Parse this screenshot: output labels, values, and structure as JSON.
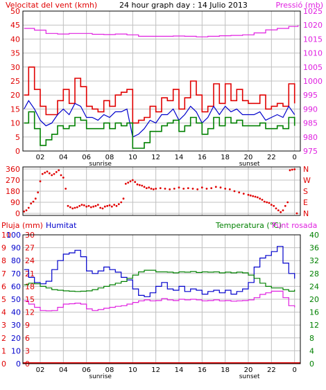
{
  "colors": {
    "wind": "#e00000",
    "wind_avg": "#0000cc",
    "wind_low": "#008000",
    "pressure": "#e020e0",
    "direction": "#e00000",
    "humidity": "#0000cc",
    "temperature": "#008000",
    "dewpoint": "#e020e0",
    "rain": "#e00000",
    "text_main": "#000000",
    "grid": "#c0c0c0",
    "background": "#ffffff",
    "frame": "#000000"
  },
  "chart_data": [
    {
      "type": "line",
      "title": "24 hour graph day : 14 Julio 2013",
      "left_label": "Velocitat del vent (kmh)",
      "right_label": "Pressió (mb)",
      "x_ticks": [
        "02",
        "04",
        "06",
        "08",
        "10",
        "12",
        "14",
        "16",
        "18",
        "20",
        "22",
        "0"
      ],
      "x_annotations": [
        "sunrise",
        "sunset"
      ],
      "sunrise_hour": 7.2,
      "sunset_hour": 20.1,
      "xlim": [
        0.5,
        24.5
      ],
      "y_left_ticks": [
        "0",
        "5",
        "10",
        "15",
        "20",
        "25",
        "30",
        "35",
        "40",
        "45",
        "50"
      ],
      "ylim_left": [
        0,
        50
      ],
      "y_right_ticks": [
        "975",
        "980",
        "985",
        "990",
        "995",
        "1000",
        "1005",
        "1010",
        "1015",
        "1020",
        "1025"
      ],
      "ylim_right": [
        975,
        1025
      ],
      "series": [
        {
          "key": "gust",
          "axis": "left",
          "x": [
            0.6,
            1.0,
            1.5,
            2.0,
            2.5,
            3.0,
            3.5,
            4.0,
            4.5,
            5.0,
            5.5,
            6.0,
            6.5,
            7.0,
            7.5,
            8.0,
            8.5,
            9.0,
            9.5,
            10.0,
            10.5,
            11.0,
            11.5,
            12.0,
            12.5,
            13.0,
            13.5,
            14.0,
            14.5,
            15.0,
            15.5,
            16.0,
            16.5,
            17.0,
            17.5,
            18.0,
            18.5,
            19.0,
            19.5,
            20.0,
            20.5,
            21.0,
            21.5,
            22.0,
            22.5,
            23.0,
            23.5,
            24.0
          ],
          "values": [
            20,
            30,
            22,
            16,
            13,
            13,
            18,
            22,
            17,
            26,
            23,
            16,
            15,
            14,
            18,
            16,
            20,
            21,
            22,
            10,
            11,
            12,
            16,
            14,
            19,
            18,
            22,
            15,
            19,
            25,
            20,
            14,
            16,
            24,
            17,
            24,
            18,
            22,
            18,
            17,
            17,
            20,
            15,
            16,
            17,
            16,
            24,
            17
          ]
        },
        {
          "key": "average",
          "axis": "left",
          "x": [
            0.6,
            1.0,
            1.5,
            2.0,
            2.5,
            3.0,
            3.5,
            4.0,
            4.5,
            5.0,
            5.5,
            6.0,
            6.5,
            7.0,
            7.5,
            8.0,
            8.5,
            9.0,
            9.5,
            10.0,
            10.5,
            11.0,
            11.5,
            12.0,
            12.5,
            13.0,
            13.5,
            14.0,
            14.5,
            15.0,
            15.5,
            16.0,
            16.5,
            17.0,
            17.5,
            18.0,
            18.5,
            19.0,
            19.5,
            20.0,
            20.5,
            21.0,
            21.5,
            22.0,
            22.5,
            23.0,
            23.5,
            24.0
          ],
          "values": [
            15,
            18,
            15,
            11,
            9,
            10,
            13,
            15,
            13,
            17,
            16,
            12,
            12,
            11,
            13,
            12,
            14,
            14,
            15,
            5,
            6,
            8,
            11,
            10,
            13,
            13,
            15,
            11,
            13,
            16,
            14,
            10,
            12,
            16,
            13,
            16,
            14,
            15,
            13,
            13,
            13,
            14,
            11,
            12,
            13,
            12,
            16,
            13
          ]
        },
        {
          "key": "low",
          "axis": "left",
          "x": [
            0.6,
            1.0,
            1.5,
            2.0,
            2.5,
            3.0,
            3.5,
            4.0,
            4.5,
            5.0,
            5.5,
            6.0,
            6.5,
            7.0,
            7.5,
            8.0,
            8.5,
            9.0,
            9.5,
            10.0,
            10.5,
            11.0,
            11.5,
            12.0,
            12.5,
            13.0,
            13.5,
            14.0,
            14.5,
            15.0,
            15.5,
            16.0,
            16.5,
            17.0,
            17.5,
            18.0,
            18.5,
            19.0,
            19.5,
            20.0,
            20.5,
            21.0,
            21.5,
            22.0,
            22.5,
            23.0,
            23.5,
            24.0
          ],
          "values": [
            10,
            14,
            8,
            2,
            4,
            6,
            9,
            8,
            9,
            12,
            11,
            8,
            8,
            8,
            10,
            8,
            10,
            9,
            10,
            1,
            1,
            3,
            7,
            7,
            9,
            10,
            11,
            7,
            9,
            12,
            10,
            6,
            8,
            12,
            9,
            12,
            10,
            11,
            9,
            9,
            9,
            10,
            8,
            8,
            9,
            8,
            12,
            9
          ]
        },
        {
          "key": "pressure",
          "axis": "right",
          "x": [
            0.6,
            1.5,
            2.5,
            3.5,
            4.5,
            5.5,
            6.5,
            7.5,
            8.5,
            9.5,
            10.5,
            11.5,
            12.5,
            13.5,
            14.5,
            15.5,
            16.5,
            17.5,
            18.5,
            19.5,
            20.5,
            21.5,
            22.5,
            23.5,
            24.3
          ],
          "values": [
            1018.8,
            1018.2,
            1017,
            1016.8,
            1017,
            1017,
            1016.7,
            1016.6,
            1016.8,
            1016.5,
            1016,
            1016,
            1016,
            1016.1,
            1016,
            1015.8,
            1016,
            1016.2,
            1016.3,
            1016.5,
            1017.2,
            1018.3,
            1018.8,
            1019.5,
            1020
          ]
        }
      ]
    },
    {
      "type": "scatter",
      "left_ticks": [
        "360",
        "270",
        "180",
        "90",
        "0"
      ],
      "ylim": [
        0,
        360
      ],
      "right_ticks": [
        "N",
        "W",
        "S",
        "E",
        "N"
      ],
      "xlim": [
        0.5,
        24.5
      ],
      "series": [
        {
          "key": "direction",
          "x": [
            0.6,
            0.8,
            1.0,
            1.2,
            1.4,
            1.6,
            1.8,
            2.0,
            2.2,
            2.4,
            2.6,
            2.8,
            3.0,
            3.2,
            3.4,
            3.6,
            3.8,
            4.0,
            4.2,
            4.4,
            4.6,
            4.8,
            5.0,
            5.2,
            5.4,
            5.6,
            5.8,
            6.0,
            6.2,
            6.4,
            6.6,
            6.8,
            7.0,
            7.2,
            7.4,
            7.6,
            7.8,
            8.0,
            8.2,
            8.4,
            8.6,
            8.8,
            9.0,
            9.2,
            9.4,
            9.6,
            9.8,
            10.0,
            10.2,
            10.4,
            10.6,
            10.8,
            11.0,
            11.2,
            11.4,
            11.6,
            11.8,
            12.0,
            12.4,
            12.8,
            13.2,
            13.6,
            14.0,
            14.4,
            14.8,
            15.2,
            15.6,
            16.0,
            16.4,
            16.8,
            17.2,
            17.6,
            18.0,
            18.4,
            18.8,
            19.2,
            19.6,
            20.0,
            20.2,
            20.4,
            20.6,
            20.8,
            21.0,
            21.2,
            21.4,
            21.6,
            21.8,
            22.0,
            22.2,
            22.4,
            22.6,
            22.8,
            23.0,
            23.2,
            23.4,
            23.6,
            23.8,
            24.0,
            24.2
          ],
          "values": [
            15,
            25,
            45,
            80,
            95,
            120,
            170,
            260,
            320,
            330,
            340,
            325,
            310,
            320,
            335,
            350,
            310,
            290,
            200,
            60,
            50,
            40,
            45,
            50,
            60,
            70,
            65,
            55,
            60,
            50,
            55,
            60,
            70,
            45,
            40,
            55,
            60,
            65,
            55,
            70,
            60,
            75,
            90,
            120,
            240,
            250,
            260,
            270,
            255,
            235,
            230,
            225,
            215,
            205,
            210,
            200,
            195,
            200,
            205,
            200,
            195,
            200,
            210,
            200,
            205,
            200,
            195,
            210,
            200,
            205,
            215,
            210,
            200,
            195,
            180,
            170,
            160,
            150,
            145,
            140,
            135,
            130,
            120,
            110,
            95,
            90,
            85,
            70,
            60,
            40,
            25,
            10,
            25,
            60,
            90,
            350,
            355,
            358,
            0
          ]
        }
      ]
    },
    {
      "type": "line",
      "rain_label": "Pluja (mm)",
      "humidity_label": "Humitat",
      "temperature_label": "Temperatura (°C)",
      "dewpoint_label": "Punt rosada",
      "x_ticks": [
        "02",
        "04",
        "06",
        "08",
        "10",
        "12",
        "14",
        "16",
        "18",
        "20",
        "22",
        "0"
      ],
      "x_annotations": [
        "sunrise",
        "sunset"
      ],
      "sunrise_hour": 7.2,
      "sunset_hour": 20.1,
      "xlim": [
        0.5,
        24.5
      ],
      "y_rain_ticks": [
        "0",
        "1",
        "2",
        "3",
        "4",
        "5",
        "6",
        "7",
        "8",
        "9",
        "10"
      ],
      "ylim_rain": [
        0,
        10
      ],
      "y_humidity_ticks": [
        "0",
        "10",
        "20",
        "30",
        "40",
        "50",
        "60",
        "70",
        "80",
        "90",
        "100"
      ],
      "ylim_humidity": [
        0,
        100
      ],
      "y_mid_ticks": [
        "0",
        "3",
        "6",
        "9",
        "12",
        "15",
        "18",
        "21",
        "24",
        "27",
        "30"
      ],
      "ylim_mid": [
        0,
        30
      ],
      "y_temp_ticks": [
        "0",
        "4",
        "8",
        "12",
        "16",
        "20",
        "24",
        "28",
        "32",
        "36",
        "40"
      ],
      "ylim_temp": [
        0,
        40
      ],
      "series": [
        {
          "key": "humidity",
          "axis": "humidity",
          "x": [
            0.6,
            1.0,
            1.5,
            2.0,
            2.5,
            3.0,
            3.5,
            4.0,
            4.5,
            5.0,
            5.5,
            6.0,
            6.5,
            7.0,
            7.5,
            8.0,
            8.5,
            9.0,
            9.5,
            10.0,
            10.5,
            11.0,
            11.5,
            12.0,
            12.5,
            13.0,
            13.5,
            14.0,
            14.5,
            15.0,
            15.5,
            16.0,
            16.5,
            17.0,
            17.5,
            18.0,
            18.5,
            19.0,
            19.5,
            20.0,
            20.5,
            21.0,
            21.5,
            22.0,
            22.5,
            23.0,
            23.5,
            24.0
          ],
          "values": [
            73,
            67,
            63,
            62,
            64,
            73,
            80,
            85,
            86,
            88,
            83,
            72,
            70,
            72,
            75,
            73,
            71,
            67,
            65,
            58,
            53,
            52,
            55,
            60,
            63,
            58,
            57,
            60,
            56,
            58,
            57,
            54,
            56,
            57,
            55,
            57,
            54,
            56,
            58,
            63,
            75,
            82,
            84,
            87,
            91,
            78,
            70,
            66
          ]
        },
        {
          "key": "temperature",
          "axis": "temp",
          "x": [
            0.6,
            1.0,
            1.5,
            2.0,
            2.5,
            3.0,
            3.5,
            4.0,
            4.5,
            5.0,
            5.5,
            6.0,
            6.5,
            7.0,
            7.5,
            8.0,
            8.5,
            9.0,
            9.5,
            10.0,
            10.5,
            11.0,
            11.5,
            12.0,
            12.5,
            13.0,
            13.5,
            14.0,
            14.5,
            15.0,
            15.5,
            16.0,
            16.5,
            17.0,
            17.5,
            18.0,
            18.5,
            19.0,
            19.5,
            20.0,
            20.5,
            21.0,
            21.5,
            22.0,
            22.5,
            23.0,
            23.5,
            24.0
          ],
          "values": [
            24.5,
            25,
            24.8,
            24,
            23.5,
            23,
            22.8,
            22.6,
            22.5,
            22.4,
            22.5,
            22.6,
            23,
            23.5,
            24,
            24.5,
            25,
            25.5,
            26.5,
            27.5,
            28.5,
            29,
            29,
            28.5,
            28.5,
            28.4,
            28.2,
            28.5,
            28.4,
            28.6,
            28.3,
            28.5,
            28.4,
            28.5,
            28.2,
            28.4,
            28.2,
            28.4,
            28.2,
            27.5,
            26.5,
            25,
            24,
            23.5,
            23.5,
            23,
            22.5,
            23
          ]
        },
        {
          "key": "dewpoint",
          "axis": "temp",
          "x": [
            0.6,
            1.0,
            1.5,
            2.0,
            2.5,
            3.0,
            3.5,
            4.0,
            4.5,
            5.0,
            5.5,
            6.0,
            6.5,
            7.0,
            7.5,
            8.0,
            8.5,
            9.0,
            9.5,
            10.0,
            10.5,
            11.0,
            11.5,
            12.0,
            12.5,
            13.0,
            13.5,
            14.0,
            14.5,
            15.0,
            15.5,
            16.0,
            16.5,
            17.0,
            17.5,
            18.0,
            18.5,
            19.0,
            19.5,
            20.0,
            20.5,
            21.0,
            21.5,
            22.0,
            22.5,
            23.0,
            23.5,
            24.0
          ],
          "values": [
            19.5,
            18.5,
            17.5,
            16.5,
            16.4,
            16.5,
            17.5,
            18.5,
            18.6,
            18.8,
            18.5,
            17,
            16.5,
            16.8,
            17.2,
            17.5,
            17.8,
            18,
            18.5,
            19,
            19.5,
            19.8,
            19.5,
            19.6,
            20.2,
            19.8,
            19.6,
            20,
            19.8,
            20,
            19.8,
            19.5,
            19.6,
            19.8,
            19.5,
            19.6,
            19.4,
            19.5,
            19.6,
            19.8,
            20.5,
            21.5,
            22,
            22.5,
            22.5,
            20.5,
            18,
            17.5
          ]
        },
        {
          "key": "rain",
          "axis": "rain",
          "x": [
            0.5,
            24.5
          ],
          "values": [
            0,
            0
          ]
        }
      ]
    }
  ]
}
